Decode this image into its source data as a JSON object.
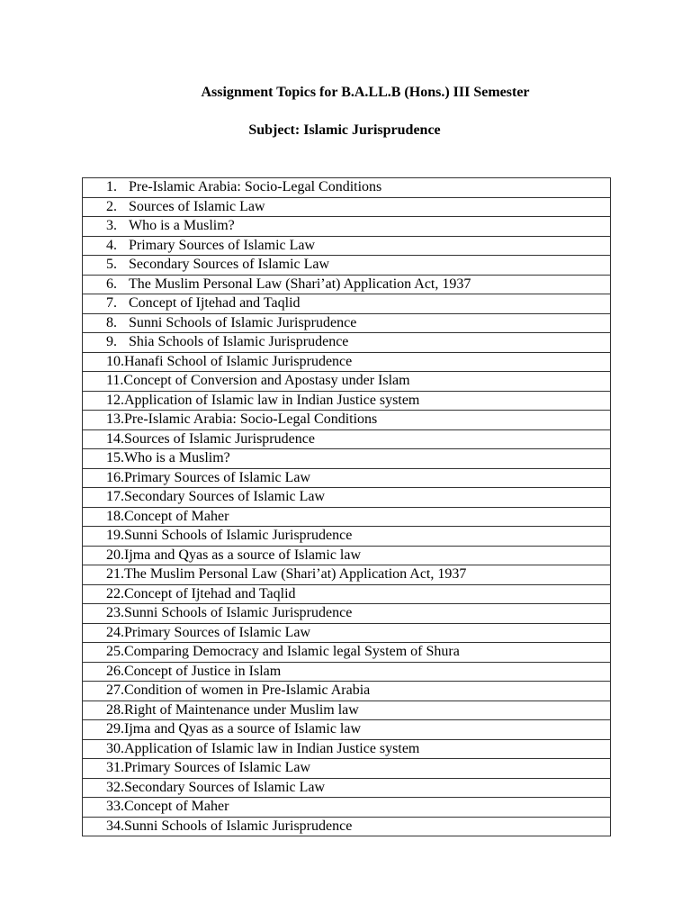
{
  "header": {
    "title": "Assignment Topics for B.A.LL.B (Hons.) III Semester",
    "subject": "Subject: Islamic Jurisprudence"
  },
  "topics": [
    {
      "num": "1.",
      "text": "Pre-Islamic Arabia: Socio-Legal Conditions"
    },
    {
      "num": "2.",
      "text": "Sources of Islamic Law"
    },
    {
      "num": "3.",
      "text": "Who is a Muslim?"
    },
    {
      "num": "4.",
      "text": "Primary Sources of Islamic Law"
    },
    {
      "num": "5.",
      "text": "Secondary Sources of Islamic Law"
    },
    {
      "num": "6.",
      "text": "The Muslim Personal Law (Shari’at) Application Act, 1937"
    },
    {
      "num": "7.",
      "text": "Concept of Ijtehad and Taqlid"
    },
    {
      "num": "8.",
      "text": "Sunni Schools of Islamic Jurisprudence"
    },
    {
      "num": "9.",
      "text": "Shia Schools of Islamic Jurisprudence"
    },
    {
      "num": "10.",
      "text": "Hanafi School of Islamic Jurisprudence"
    },
    {
      "num": "11.",
      "text": "Concept of Conversion and Apostasy under Islam"
    },
    {
      "num": "12.",
      "text": "Application of Islamic law in Indian Justice system"
    },
    {
      "num": "13.",
      "text": "Pre-Islamic Arabia: Socio-Legal Conditions"
    },
    {
      "num": "14.",
      "text": "Sources of Islamic Jurisprudence"
    },
    {
      "num": "15.",
      "text": "Who is a Muslim?"
    },
    {
      "num": "16.",
      "text": "Primary Sources of Islamic Law"
    },
    {
      "num": "17.",
      "text": "Secondary Sources of Islamic Law"
    },
    {
      "num": "18.",
      "text": "Concept of Maher"
    },
    {
      "num": "19.",
      "text": "Sunni Schools of Islamic Jurisprudence"
    },
    {
      "num": "20.",
      "text": "Ijma and Qyas as a source of Islamic law"
    },
    {
      "num": "21.",
      "text": "The Muslim Personal Law (Shari’at) Application Act, 1937"
    },
    {
      "num": "22.",
      "text": "Concept of Ijtehad and Taqlid"
    },
    {
      "num": "23.",
      "text": "Sunni Schools of Islamic Jurisprudence"
    },
    {
      "num": "24.",
      "text": "Primary Sources of Islamic Law"
    },
    {
      "num": "25.",
      "text": "Comparing Democracy and Islamic legal System of Shura"
    },
    {
      "num": "26.",
      "text": "Concept of Justice in Islam"
    },
    {
      "num": "27.",
      "text": "Condition of women in Pre-Islamic Arabia"
    },
    {
      "num": "28.",
      "text": "Right of Maintenance under Muslim law"
    },
    {
      "num": "29.",
      "text": "Ijma and Qyas as a source of Islamic law"
    },
    {
      "num": "30.",
      "text": "Application of Islamic law in Indian Justice system"
    },
    {
      "num": "31.",
      "text": "Primary Sources of Islamic Law"
    },
    {
      "num": "32.",
      "text": "Secondary Sources of Islamic Law"
    },
    {
      "num": "33.",
      "text": "Concept of Maher"
    },
    {
      "num": "34.",
      "text": "Sunni Schools of Islamic Jurisprudence"
    }
  ]
}
